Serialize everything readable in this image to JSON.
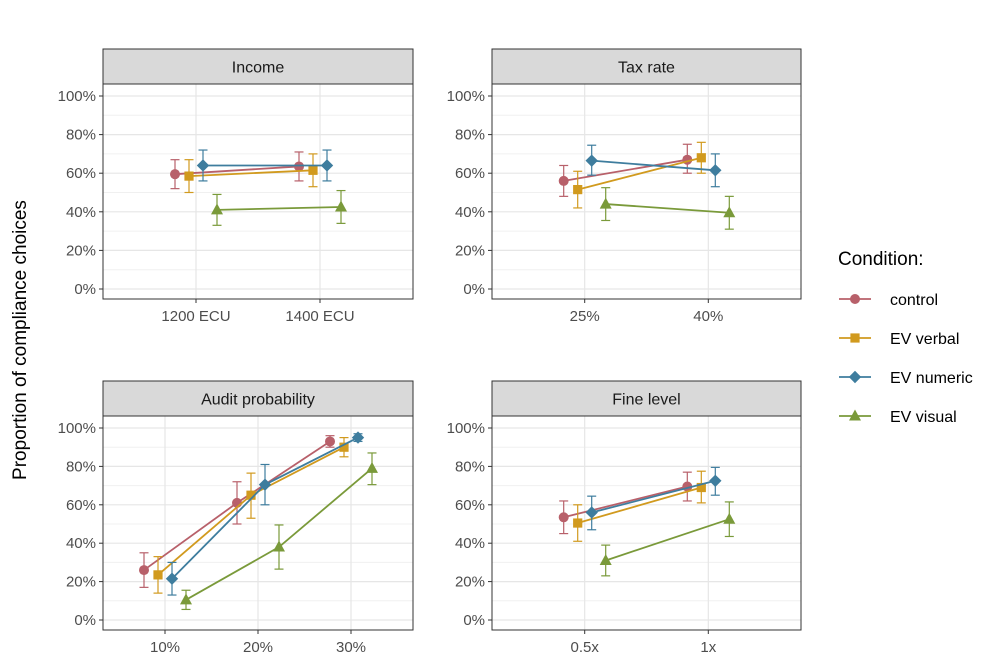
{
  "chart_data": {
    "type": "line",
    "ylabel": "Proportion of compliance choices",
    "yticks": [
      "0%",
      "20%",
      "40%",
      "60%",
      "80%",
      "100%"
    ],
    "ylim": [
      0,
      100
    ],
    "grid": true,
    "legend": {
      "title": "Condition:",
      "placement": "right",
      "entries": [
        "control",
        "EV verbal",
        "EV numeric",
        "EV visual"
      ]
    },
    "series_styles": [
      {
        "name": "control",
        "color": "#b8606a",
        "marker": "circle"
      },
      {
        "name": "EV verbal",
        "color": "#d19a1e",
        "marker": "square"
      },
      {
        "name": "EV numeric",
        "color": "#3e7d9e",
        "marker": "diamond"
      },
      {
        "name": "EV visual",
        "color": "#7a9a3a",
        "marker": "triangle"
      }
    ],
    "panels": [
      {
        "title": "Income",
        "categories": [
          "1200 ECU",
          "1400 ECU"
        ],
        "series": [
          {
            "name": "control",
            "values": [
              59.5,
              63.5
            ],
            "lower": [
              52,
              56
            ],
            "upper": [
              67,
              71
            ]
          },
          {
            "name": "EV verbal",
            "values": [
              58.5,
              61.5
            ],
            "lower": [
              50,
              53
            ],
            "upper": [
              67,
              70
            ]
          },
          {
            "name": "EV numeric",
            "values": [
              64,
              64
            ],
            "lower": [
              56,
              56
            ],
            "upper": [
              72,
              72
            ]
          },
          {
            "name": "EV visual",
            "values": [
              41,
              42.5
            ],
            "lower": [
              33,
              34
            ],
            "upper": [
              49,
              51
            ]
          }
        ]
      },
      {
        "title": "Tax rate",
        "categories": [
          "25%",
          "40%"
        ],
        "series": [
          {
            "name": "control",
            "values": [
              56,
              67
            ],
            "lower": [
              48,
              60
            ],
            "upper": [
              64,
              75
            ]
          },
          {
            "name": "EV verbal",
            "values": [
              51.5,
              68
            ],
            "lower": [
              42,
              60
            ],
            "upper": [
              61,
              76
            ]
          },
          {
            "name": "EV numeric",
            "values": [
              66.5,
              61.5
            ],
            "lower": [
              59,
              53
            ],
            "upper": [
              74.5,
              70
            ]
          },
          {
            "name": "EV visual",
            "values": [
              44,
              39.5
            ],
            "lower": [
              35.5,
              31
            ],
            "upper": [
              52.5,
              48
            ]
          }
        ]
      },
      {
        "title": "Audit probability",
        "categories": [
          "10%",
          "20%",
          "30%"
        ],
        "series": [
          {
            "name": "control",
            "values": [
              26,
              61,
              93
            ],
            "lower": [
              17,
              50,
              90
            ],
            "upper": [
              35,
              72,
              96
            ]
          },
          {
            "name": "EV verbal",
            "values": [
              23.5,
              65,
              90
            ],
            "lower": [
              14,
              53,
              85
            ],
            "upper": [
              33,
              76.5,
              95
            ]
          },
          {
            "name": "EV numeric",
            "values": [
              21.5,
              70.5,
              95
            ],
            "lower": [
              13,
              60,
              93
            ],
            "upper": [
              30,
              81,
              97
            ]
          },
          {
            "name": "EV visual",
            "values": [
              10.5,
              38,
              79
            ],
            "lower": [
              5.5,
              26.5,
              70.5
            ],
            "upper": [
              15.5,
              49.5,
              87
            ]
          }
        ]
      },
      {
        "title": "Fine level",
        "categories": [
          "0.5x",
          "1x"
        ],
        "series": [
          {
            "name": "control",
            "values": [
              53.5,
              69.5
            ],
            "lower": [
              45,
              62
            ],
            "upper": [
              62,
              77
            ]
          },
          {
            "name": "EV verbal",
            "values": [
              50.5,
              69
            ],
            "lower": [
              41,
              61
            ],
            "upper": [
              60,
              77.5
            ]
          },
          {
            "name": "EV numeric",
            "values": [
              56,
              72.5
            ],
            "lower": [
              47,
              65
            ],
            "upper": [
              64.5,
              79.5
            ]
          },
          {
            "name": "EV visual",
            "values": [
              31,
              52.5
            ],
            "lower": [
              23,
              43.5
            ],
            "upper": [
              39,
              61.5
            ]
          }
        ]
      }
    ]
  }
}
